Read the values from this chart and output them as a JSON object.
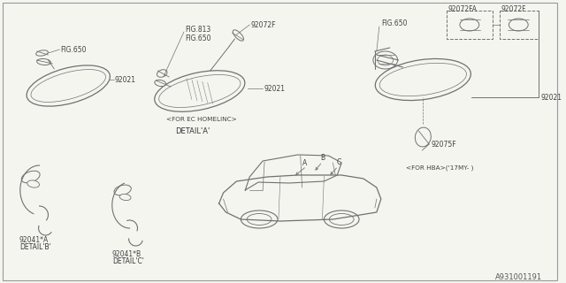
{
  "bg_color": "#f5f5f0",
  "border_color": "#888888",
  "fig_number": "A931001191",
  "lc": "#707070",
  "tc": "#404040",
  "labels": {
    "fig650_tl": "FIG.650",
    "p92021_tl": "92021",
    "fig813": "FIG.813",
    "fig650_mid": "FIG.650",
    "p92072f_mid": "92072F",
    "p92021_mid": "92021",
    "caption_mid": "<FOR EC HOMELINC>",
    "detail_a": "DETAIL'A'",
    "fig650_tr": "FIG.650",
    "p92072fa": "92072FA",
    "p92072f_tr": "92072F",
    "p92021_tr": "92021",
    "p92075f": "92075F",
    "caption_tr": "<FOR HBA>('17MY- )",
    "p92041a": "92041*A",
    "detail_b": "DETAIL'B'",
    "p92041b": "92041*B",
    "detail_c": "DETAIL'C'",
    "la": "A",
    "lb": "B",
    "lc_label": "C"
  }
}
